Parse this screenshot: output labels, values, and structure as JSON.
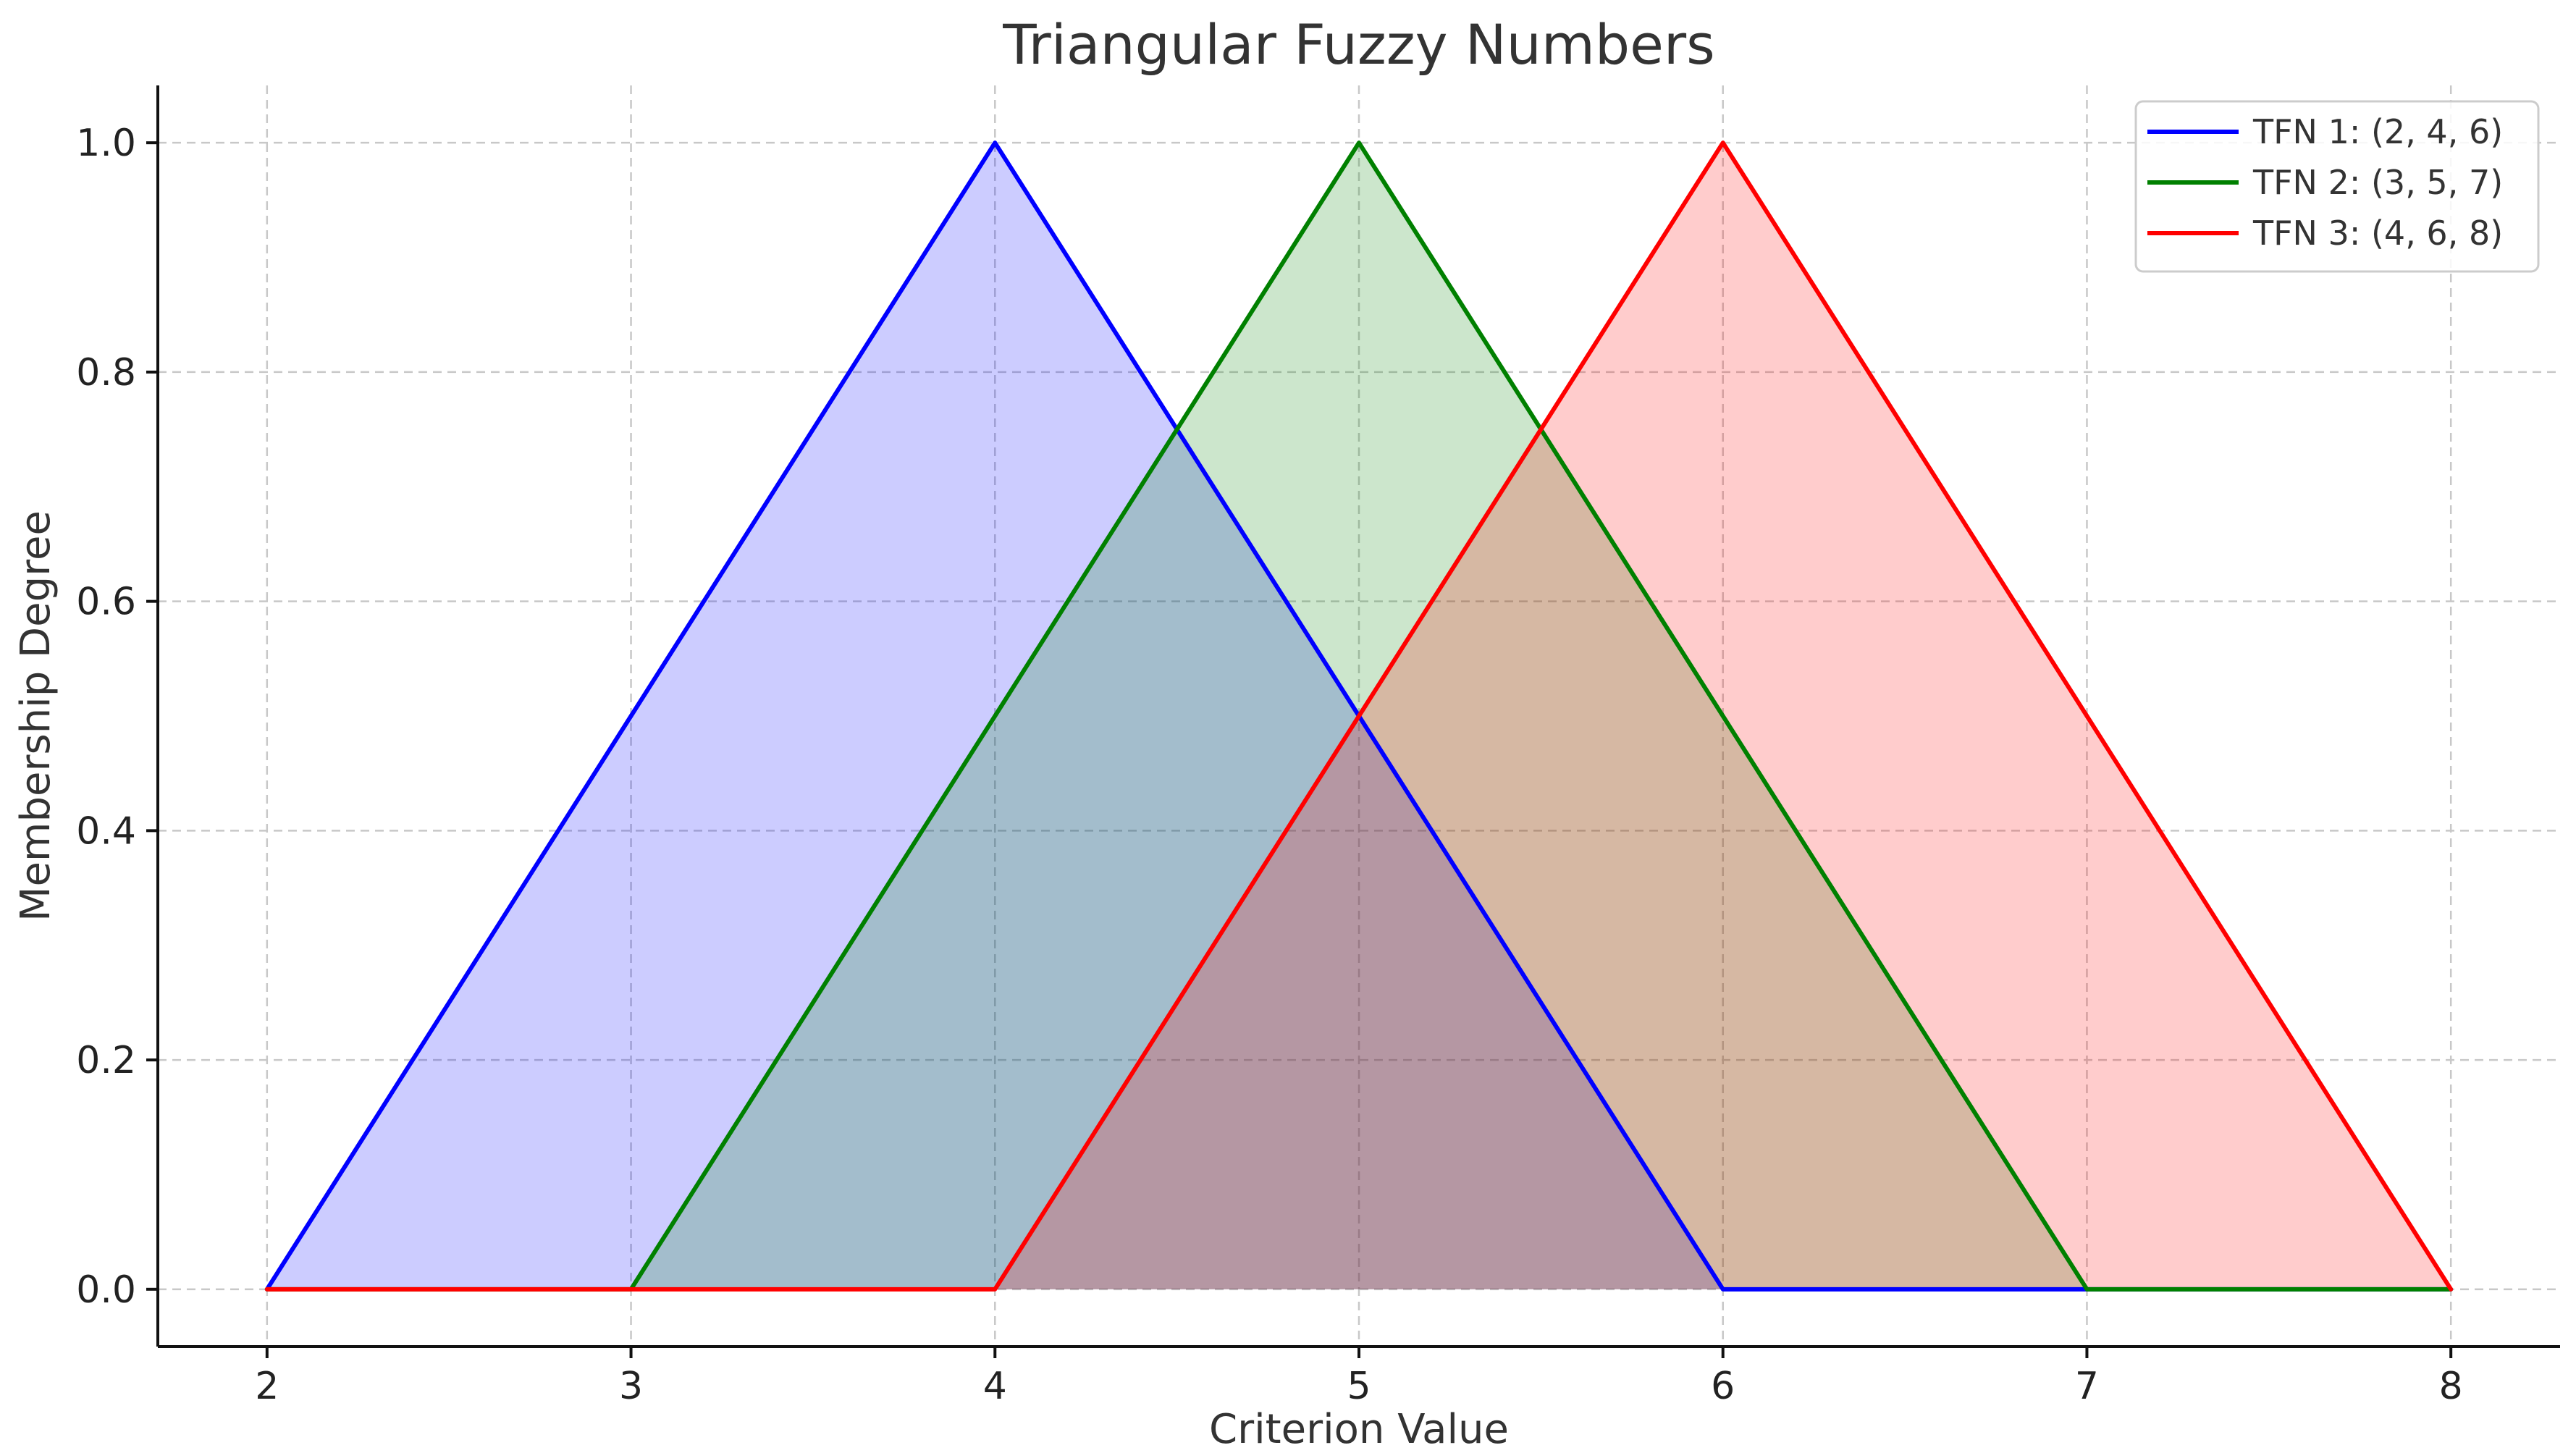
{
  "chart_data": {
    "type": "area",
    "title": "Triangular Fuzzy Numbers",
    "xlabel": "Criterion Value",
    "ylabel": "Membership Degree",
    "xlim": [
      1.7,
      8.3
    ],
    "ylim": [
      -0.05,
      1.05
    ],
    "xticks": [
      2,
      3,
      4,
      5,
      6,
      7,
      8
    ],
    "xtick_labels": [
      "2",
      "3",
      "4",
      "5",
      "6",
      "7",
      "8"
    ],
    "yticks": [
      0,
      0.2,
      0.4,
      0.6,
      0.8,
      1.0
    ],
    "ytick_labels": [
      "0.0",
      "0.2",
      "0.4",
      "0.6",
      "0.8",
      "1.0"
    ],
    "grid": true,
    "legend_position": "top-right",
    "series": [
      {
        "name": "TFN 1: (2, 4, 6)",
        "color": "#0000ff",
        "fill_color": "#0000ff",
        "x": [
          2,
          3,
          4,
          5,
          6,
          7,
          8
        ],
        "y": [
          0,
          0.5,
          1.0,
          0.5,
          0,
          0,
          0
        ]
      },
      {
        "name": "TFN 2: (3, 5, 7)",
        "color": "#008000",
        "fill_color": "#008000",
        "x": [
          2,
          3,
          4,
          5,
          6,
          7,
          8
        ],
        "y": [
          0,
          0,
          0.5,
          1.0,
          0.5,
          0,
          0
        ]
      },
      {
        "name": "TFN 3: (4, 6, 8)",
        "color": "#ff0000",
        "fill_color": "#ff0000",
        "x": [
          2,
          3,
          4,
          5,
          6,
          7,
          8
        ],
        "y": [
          0,
          0,
          0,
          0.5,
          1.0,
          0.5,
          0
        ]
      }
    ]
  }
}
